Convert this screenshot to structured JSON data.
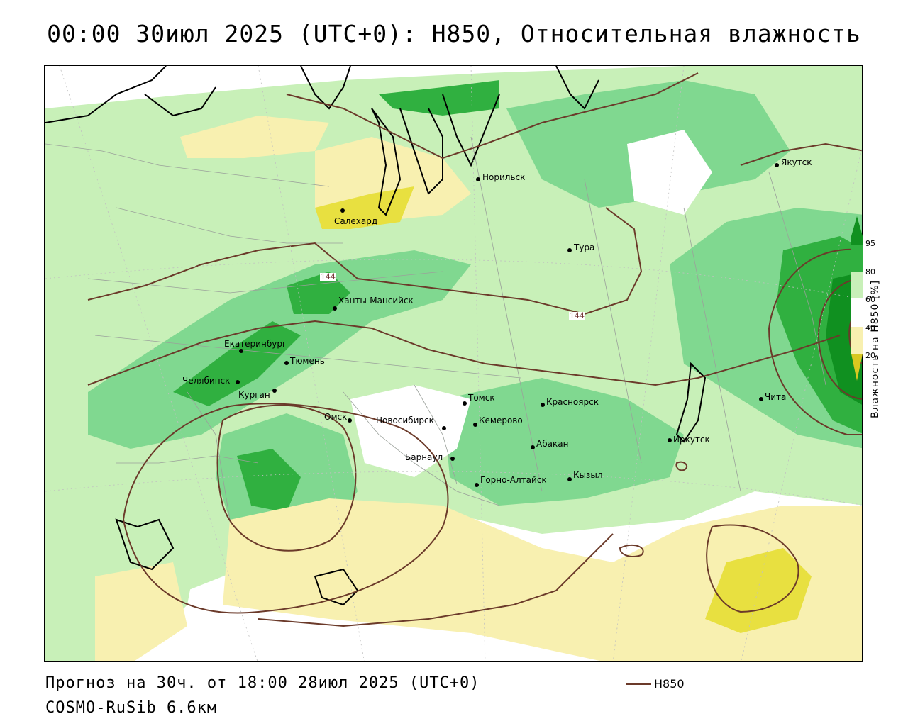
{
  "title": "00:00 30июл 2025 (UTC+0): H850, Относительная влажность",
  "footer": {
    "forecast": "Прогноз на 30ч. от 18:00 28июл 2025 (UTC+0)",
    "model": "COSMO-RuSib 6.6км"
  },
  "series_legend": {
    "label": "H850",
    "color": "#6b3a2a"
  },
  "colorbar": {
    "title": "Влажность на H850 [%]",
    "ticks": [
      "95",
      "80",
      "60",
      "40",
      "20"
    ],
    "colors": {
      "very_dry": "#d8c820",
      "dry": "#e8e040",
      "moderately_dry": "#f8f0b0",
      "neutral": "#ffffff",
      "humid": "#c8f0b8",
      "wet": "#80d890",
      "very_wet": "#30b040",
      "saturated": "#109020"
    }
  },
  "contour_labels": [
    "144",
    "144"
  ],
  "cities": [
    {
      "name": "Норильск"
    },
    {
      "name": "Якутск"
    },
    {
      "name": "Салехард"
    },
    {
      "name": "Тура"
    },
    {
      "name": "Ханты-Мансийск"
    },
    {
      "name": "Екатеринбург"
    },
    {
      "name": "Тюмень"
    },
    {
      "name": "Челябинск"
    },
    {
      "name": "Курган"
    },
    {
      "name": "Омск"
    },
    {
      "name": "Новосибирск"
    },
    {
      "name": "Томск"
    },
    {
      "name": "Кемерово"
    },
    {
      "name": "Красноярск"
    },
    {
      "name": "Барнаул"
    },
    {
      "name": "Абакан"
    },
    {
      "name": "Иркутск"
    },
    {
      "name": "Чита"
    },
    {
      "name": "Кызыл"
    },
    {
      "name": "Горно-Алтайск"
    }
  ]
}
